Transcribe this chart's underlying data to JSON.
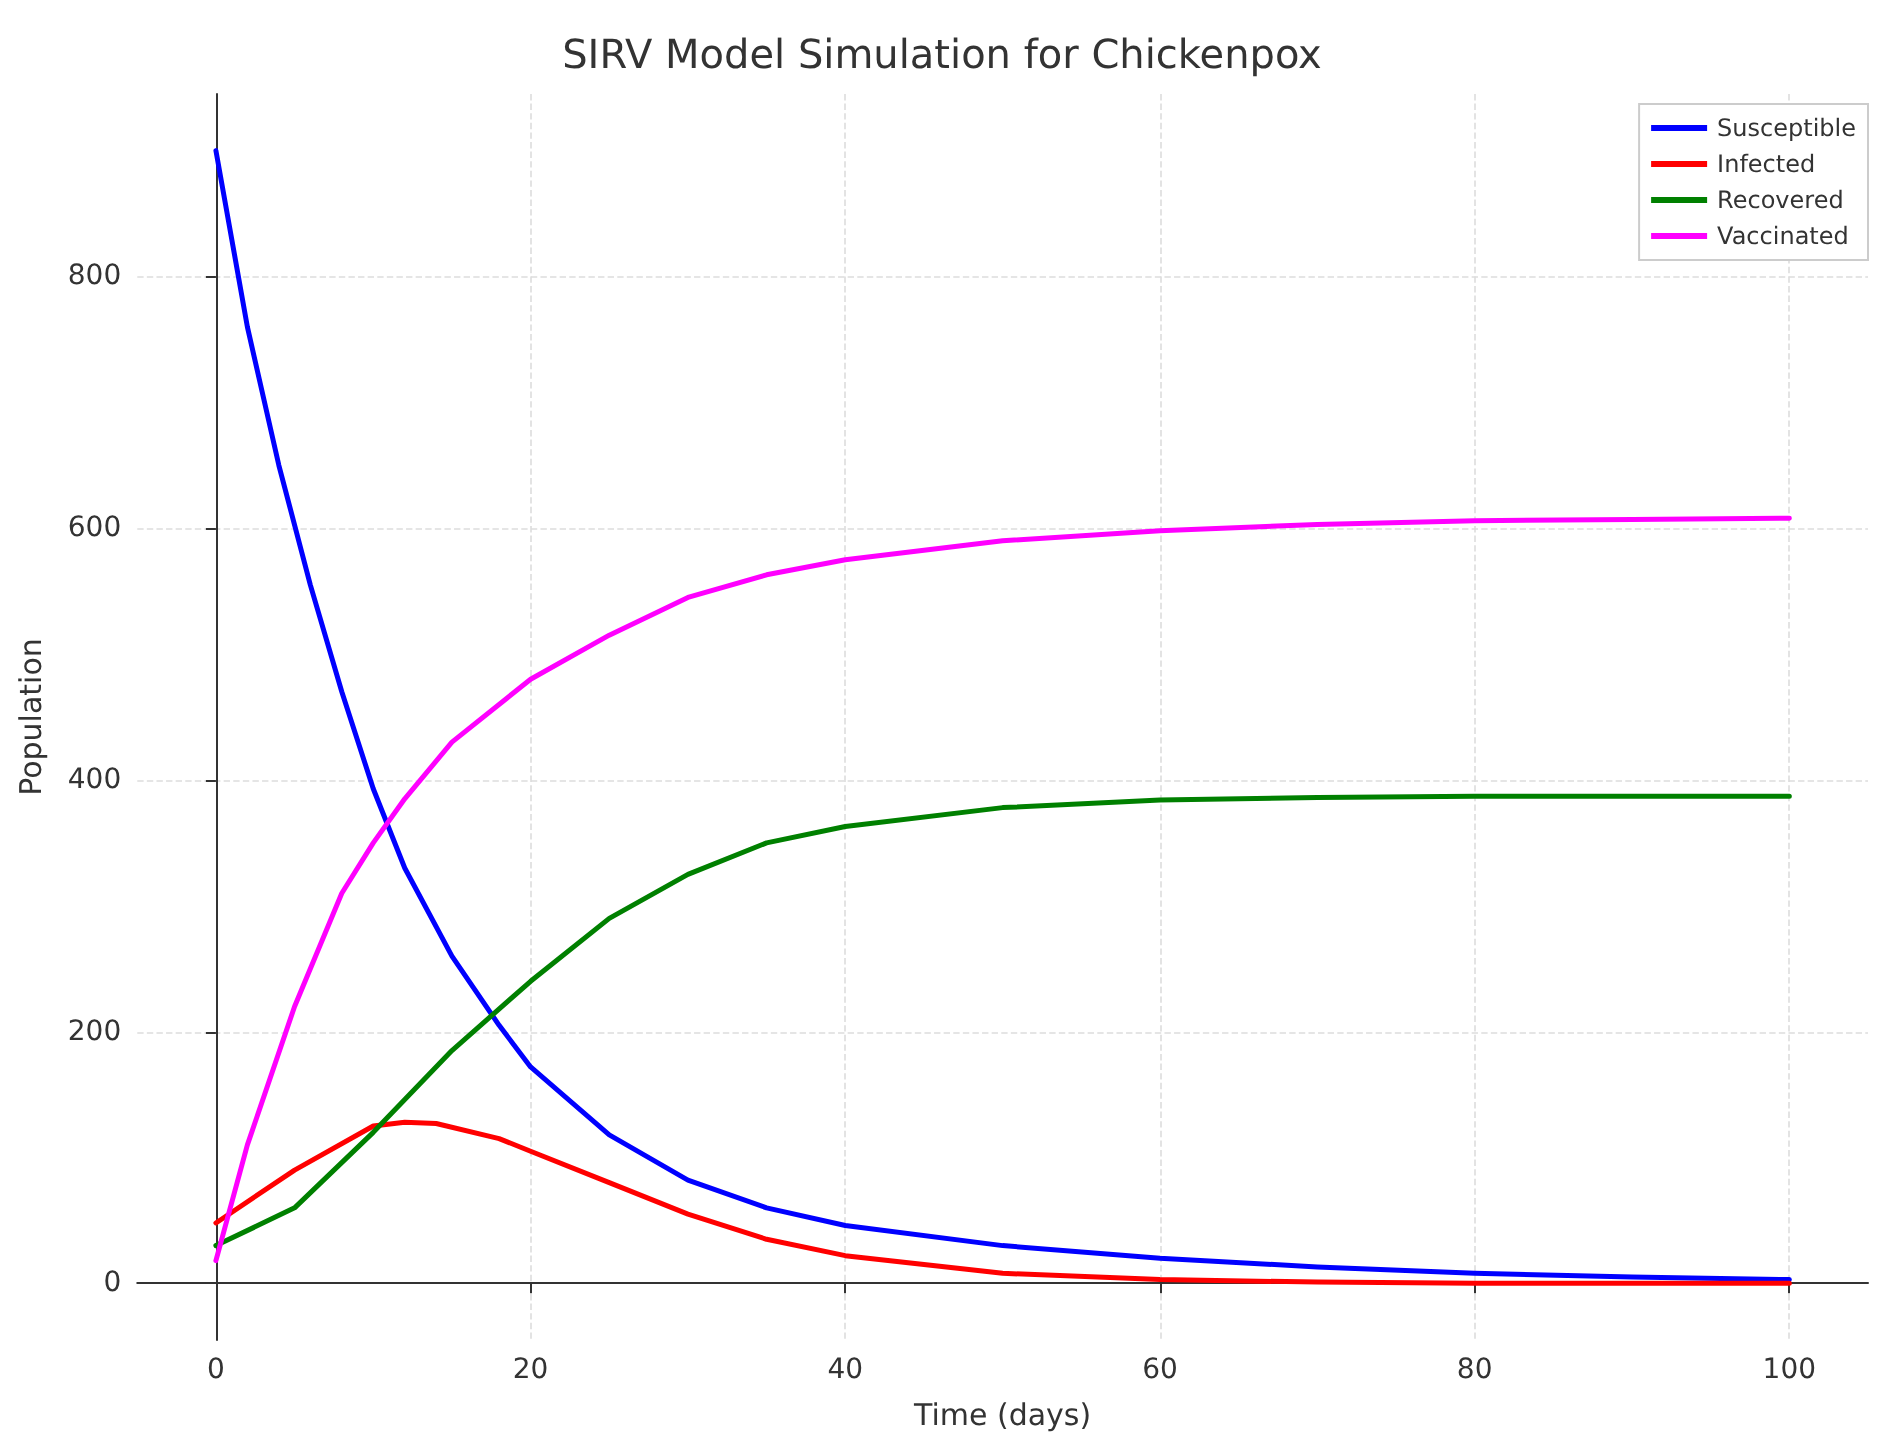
{
  "chart_data": {
    "type": "line",
    "title": "SIRV Model Simulation for Chickenpox",
    "xlabel": "Time (days)",
    "ylabel": "Population",
    "xlim": [
      -5,
      105
    ],
    "xticks": [
      0,
      20,
      40,
      60,
      80,
      100
    ],
    "ylim": [
      -45,
      945
    ],
    "yticks": [
      0,
      200,
      400,
      600,
      800
    ],
    "grid": true,
    "legend": "top right",
    "marker": "none",
    "line_style": "solid",
    "series": [
      {
        "name": "Susceptible",
        "color": "#0000ff",
        "x": [
          0,
          2,
          4,
          6,
          8,
          10,
          12,
          15,
          18,
          20,
          25,
          30,
          35,
          40,
          50,
          60,
          70,
          80,
          90,
          100
        ],
        "values": [
          900,
          760,
          650,
          555,
          470,
          393,
          330,
          260,
          205,
          172,
          118,
          82,
          60,
          46,
          30,
          20,
          13,
          8,
          5,
          3
        ]
      },
      {
        "name": "Infected",
        "color": "#ff0000",
        "x": [
          0,
          5,
          10,
          12,
          14,
          18,
          20,
          25,
          30,
          35,
          40,
          50,
          60,
          70,
          80,
          100
        ],
        "values": [
          48,
          90,
          125,
          128,
          127,
          115,
          105,
          80,
          55,
          35,
          22,
          8,
          3,
          1,
          0,
          0
        ]
      },
      {
        "name": "Recovered",
        "color": "#008000",
        "x": [
          0,
          5,
          10,
          15,
          20,
          25,
          30,
          35,
          40,
          50,
          60,
          70,
          80,
          100
        ],
        "values": [
          30,
          60,
          120,
          185,
          240,
          290,
          325,
          350,
          363,
          378,
          384,
          386,
          387,
          387
        ]
      },
      {
        "name": "Vaccinated",
        "color": "#ff00ff",
        "x": [
          0,
          2,
          5,
          8,
          10,
          12,
          15,
          20,
          25,
          30,
          35,
          40,
          50,
          60,
          70,
          80,
          90,
          100
        ],
        "values": [
          18,
          110,
          220,
          310,
          350,
          385,
          430,
          480,
          515,
          545,
          563,
          575,
          590,
          598,
          603,
          606,
          607,
          608
        ]
      }
    ]
  }
}
